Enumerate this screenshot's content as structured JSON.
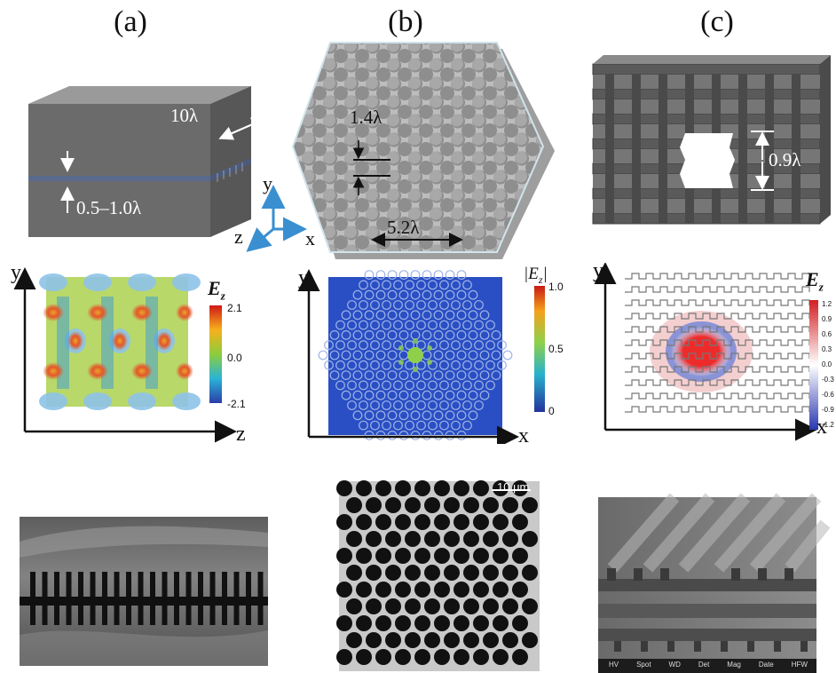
{
  "labels": {
    "a": "(a)",
    "b": "(b)",
    "c": "(c)"
  },
  "panel_a": {
    "dim_width": "10λ",
    "dim_gap": "0.5–1.0λ",
    "axis": {
      "y": "y",
      "z": "z",
      "x": "x"
    },
    "field_plot": {
      "yaxis": "y",
      "xaxis": "z",
      "cbar_title": "E",
      "cbar_sub": "z",
      "cbar_ticks": [
        "2.1",
        "0.0",
        "-2.1"
      ]
    }
  },
  "panel_b": {
    "dim_gap": "1.4λ",
    "dim_width": "5.2λ",
    "field_plot": {
      "yaxis": "y",
      "xaxis": "x",
      "cbar_title": "|E",
      "cbar_sub": "z",
      "cbar_close": "|",
      "cbar_ticks": [
        "1.0",
        "0.5",
        "0"
      ]
    },
    "sem_scale": "10 μm"
  },
  "panel_c": {
    "dim_gap": "0.9λ",
    "field_plot": {
      "yaxis": "y",
      "xaxis": "x",
      "cbar_title": "E",
      "cbar_sub": "z",
      "cbar_ticks": [
        "1.2",
        "0.9",
        "0.6",
        "0.3",
        "0.0",
        "-0.3",
        "-0.6",
        "-0.9",
        "-1.2"
      ]
    },
    "sem_footer": [
      "HV",
      "Spot",
      "WD",
      "Det",
      "Mag",
      "Date",
      "HFW"
    ]
  },
  "colors": {
    "accent_blue": "#3a8fd0",
    "field_b_bg": "#2a4fc4",
    "sem_gray": "#6f6f6f"
  }
}
